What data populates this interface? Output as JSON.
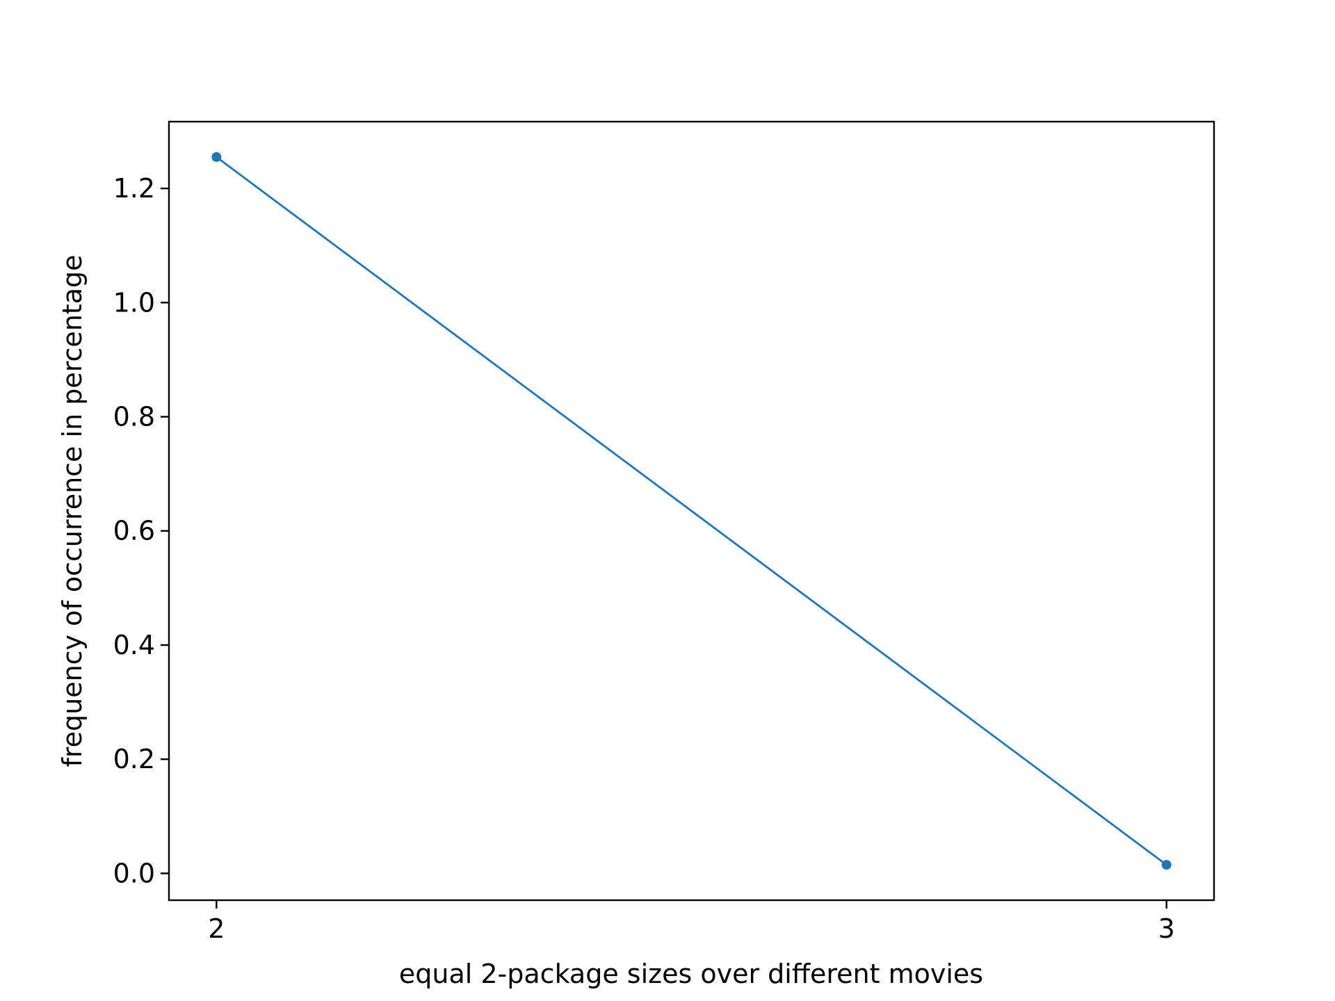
{
  "chart_data": {
    "type": "line",
    "title": "",
    "xlabel": "equal 2-package sizes over different movies",
    "ylabel": "frequency of occurrence in percentage",
    "x": [
      2,
      3
    ],
    "series": [
      {
        "values": [
          1.255,
          0.015
        ],
        "color": "#1f77b4",
        "marker": "circle"
      }
    ],
    "xlim": [
      1.95,
      3.05
    ],
    "ylim": [
      -0.047,
      1.317
    ],
    "xticks": [
      2,
      3
    ],
    "xtick_labels": [
      "2",
      "3"
    ],
    "yticks": [
      0.0,
      0.2,
      0.4,
      0.6,
      0.8,
      1.0,
      1.2
    ],
    "ytick_labels": [
      "0.0",
      "0.2",
      "0.4",
      "0.6",
      "0.8",
      "1.0",
      "1.2"
    ],
    "grid": false,
    "legend": "none"
  }
}
